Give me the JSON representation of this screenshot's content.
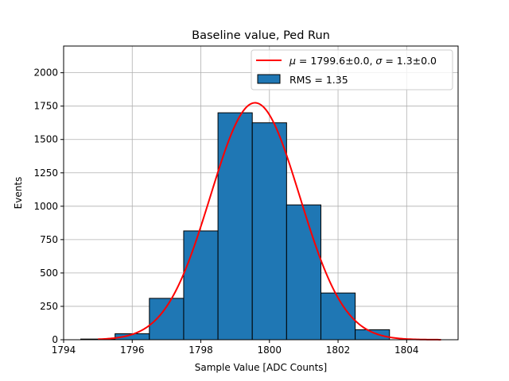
{
  "chart_data": {
    "type": "bar",
    "title": "Baseline value, Ped Run",
    "xlabel": "Sample Value [ADC Counts]",
    "ylabel": "Events",
    "xlim": [
      1794,
      1805.5
    ],
    "ylim": [
      0,
      2200
    ],
    "grid": true,
    "legend_position": "top-right",
    "xticks": [
      1794,
      1796,
      1798,
      1800,
      1802,
      1804
    ],
    "yticks": [
      0,
      250,
      500,
      750,
      1000,
      1250,
      1500,
      1750,
      2000
    ],
    "histogram": {
      "name": "RMS = 1.35",
      "color": "#1f77b4",
      "edge_color": "#000000",
      "bin_edges": [
        1794.5,
        1795.5,
        1796.5,
        1797.5,
        1798.5,
        1799.5,
        1800.5,
        1801.5,
        1802.5,
        1803.5
      ],
      "counts": [
        5,
        45,
        310,
        815,
        1700,
        1625,
        1010,
        350,
        75
      ]
    },
    "fit": {
      "name_prefix": "μ = 1799.6±0.0, σ = 1.3±0.0",
      "mu_label": "μ",
      "sigma_label": "σ",
      "mu_value": "1799.6±0.0",
      "sigma_value": "1.3±0.0",
      "color": "#ff0000",
      "mu": 1799.58,
      "sigma": 1.3,
      "amplitude": 1775,
      "x_range": [
        1795,
        1805
      ]
    },
    "legend": {
      "fit_mu_symbol": "μ",
      "fit_eq": " = ",
      "fit_mu_val": "1799.6±0.0, ",
      "fit_sigma_symbol": "σ",
      "fit_sigma_val": "1.3±0.0",
      "hist_label": "RMS = 1.35"
    }
  }
}
